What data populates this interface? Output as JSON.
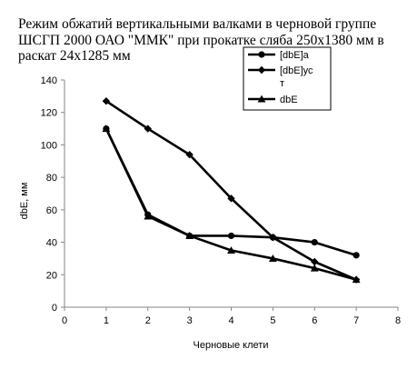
{
  "chart_data": {
    "type": "line",
    "title_lines": [
      "Режим обжатий вертикальными валками  в черновой группе",
      "ШСГП 2000 ОАО \"ММК\" при прокатке сляба 250х1380 мм в",
      "раскат 24х1285 мм"
    ],
    "xlabel": "Черновые клети",
    "ylabel": "dbE, мм",
    "xlim": [
      0,
      8
    ],
    "ylim": [
      0,
      140
    ],
    "x_ticks": [
      "0",
      "1",
      "2",
      "3",
      "4",
      "5",
      "6",
      "7",
      "8"
    ],
    "y_ticks": [
      "0",
      "20",
      "40",
      "60",
      "80",
      "100",
      "120",
      "140"
    ],
    "grid": false,
    "legend_position": "top-right, overlapping title",
    "series": [
      {
        "name": "[dbE]a",
        "marker": "circle",
        "color": "#000000",
        "x": [
          1,
          2,
          3,
          4,
          5,
          6,
          7
        ],
        "y": [
          110,
          57,
          44,
          44,
          43,
          40,
          32
        ]
      },
      {
        "name": "[dbE]ус\nт",
        "marker": "diamond",
        "color": "#000000",
        "x": [
          1,
          2,
          3,
          4,
          5,
          6,
          7
        ],
        "y": [
          127,
          110,
          94,
          67,
          43,
          28,
          17
        ]
      },
      {
        "name": "dbE",
        "marker": "triangle",
        "color": "#000000",
        "x": [
          1,
          2,
          3,
          4,
          5,
          6,
          7
        ],
        "y": [
          110,
          56,
          44,
          35,
          30,
          24,
          17
        ]
      }
    ]
  }
}
